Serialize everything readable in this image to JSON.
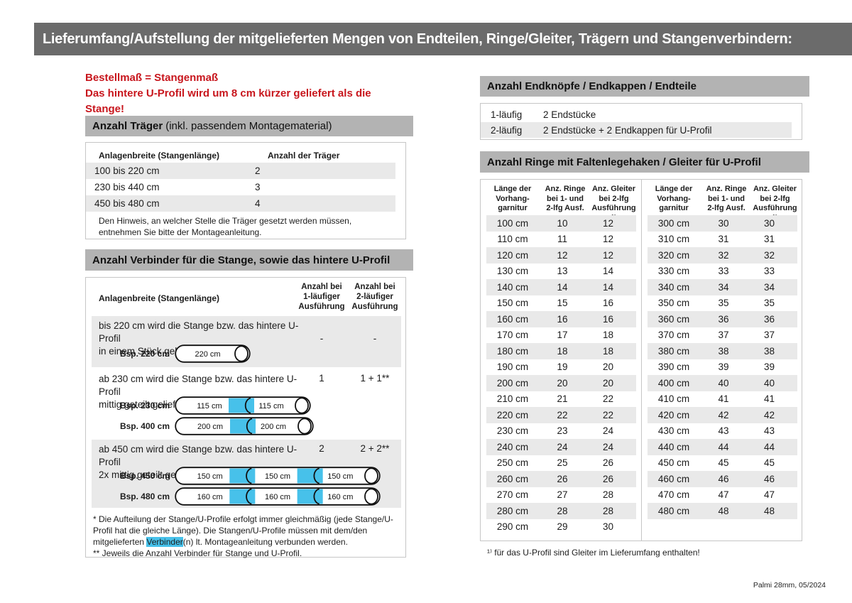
{
  "colors": {
    "header_bar": "#6b6b6b",
    "section_bar": "#b3b3b3",
    "row_shade": "#e9e9e9",
    "red": "#c8161d",
    "cyan": "#47c1ea"
  },
  "page": {
    "header_title": "Lieferumfang/Aufstellung der mitgelieferten Mengen von Endteilen, Ringe/Gleiter, Trägern und Stangenverbindern:",
    "footer": "Palmi 28mm, 05/2024"
  },
  "notice": {
    "line1": "Bestellmaß = Stangenmaß",
    "line2": "Das hintere U-Profil wird um 8 cm kürzer geliefert als die Stange!"
  },
  "traeger": {
    "title_bold": "Anzahl Träger",
    "title_rest": "(inkl. passendem Montagematerial)",
    "col1": "Anlagenbreite (Stangenlänge)",
    "col2": "Anzahl der Träger",
    "rows": [
      {
        "range": "100 bis 220 cm",
        "count": "2"
      },
      {
        "range": "230 bis 440 cm",
        "count": "3"
      },
      {
        "range": "450 bis 480 cm",
        "count": "4"
      }
    ],
    "note": "Den Hinweis, an welcher Stelle die Träger gesetzt werden müssen, entnehmen Sie bitte der Montageanleitung."
  },
  "verbinder": {
    "title": "Anzahl Verbinder für die Stange, sowie das hintere U-Profil",
    "col1": "Anlagenbreite (Stangenlänge)",
    "col2": "Anzahl bei\n1-läufiger\nAusführung",
    "col3": "Anzahl bei\n2-läufiger\nAusführung",
    "blocks": [
      {
        "text1": "bis 220 cm wird die Stange bzw. das hintere U-Profil",
        "text2": "in einem Stück geliefert",
        "qty1": "-",
        "qty2": "-",
        "examples": [
          {
            "label": "Bsp. 220 cm",
            "segments": [
              "220 cm"
            ]
          }
        ]
      },
      {
        "text1": "ab 230 cm wird die Stange bzw. das hintere U-Profil",
        "text2": "mittig geteilt geliefert*",
        "qty1": "1",
        "qty2": "1 + 1**",
        "examples": [
          {
            "label": "Bsp. 230 cm",
            "segments": [
              "115 cm",
              "115 cm"
            ]
          },
          {
            "label": "Bsp. 400 cm",
            "segments": [
              "200 cm",
              "200 cm"
            ]
          }
        ]
      },
      {
        "text1": "ab 450 cm wird die Stange bzw. das hintere U-Profil",
        "text2": "2x mittig geteilt geliefert*",
        "qty1": "2",
        "qty2": "2 + 2**",
        "examples": [
          {
            "label": "Bsp. 450 cm",
            "segments": [
              "150 cm",
              "150 cm",
              "150 cm"
            ]
          },
          {
            "label": "Bsp. 480 cm",
            "segments": [
              "160 cm",
              "160 cm",
              "160 cm"
            ]
          }
        ]
      }
    ],
    "footnote1_pre": "* Die Aufteilung der Stange/U-Profile erfolgt immer gleichmäßig (jede Stange/U-Profil hat die gleiche Länge). Die Stangen/U-Profile müssen mit dem/den mitgelieferten ",
    "footnote1_highlight": "Verbinder",
    "footnote1_post": "(n) lt. Montageanleitung verbunden werden.",
    "footnote2": "** Jeweils die Anzahl Verbinder für Stange und U-Profil."
  },
  "endteile": {
    "title": "Anzahl Endknöpfe / Endkappen / Endteile",
    "rows": [
      {
        "type": "1-läufig",
        "desc": "2 Endstücke"
      },
      {
        "type": "2-läufig",
        "desc": "2 Endstücke + 2 Endkappen für U-Profil"
      }
    ]
  },
  "ringe": {
    "title": "Anzahl Ringe mit Faltenlegehaken / Gleiter für U-Profil",
    "col1": "Länge der\nVorhang-\ngarnitur",
    "col2": "Anz. Ringe\nbei 1- und\n2-lfg Ausf.",
    "col3": "Anz. Gleiter\nbei 2-lfg\nAusführung ¹⁾",
    "left_rows": [
      {
        "len": "100 cm",
        "ringe": "10",
        "gleiter": "12"
      },
      {
        "len": "110 cm",
        "ringe": "11",
        "gleiter": "12"
      },
      {
        "len": "120 cm",
        "ringe": "12",
        "gleiter": "12"
      },
      {
        "len": "130 cm",
        "ringe": "13",
        "gleiter": "14"
      },
      {
        "len": "140 cm",
        "ringe": "14",
        "gleiter": "14"
      },
      {
        "len": "150 cm",
        "ringe": "15",
        "gleiter": "16"
      },
      {
        "len": "160 cm",
        "ringe": "16",
        "gleiter": "16"
      },
      {
        "len": "170 cm",
        "ringe": "17",
        "gleiter": "18"
      },
      {
        "len": "180 cm",
        "ringe": "18",
        "gleiter": "18"
      },
      {
        "len": "190 cm",
        "ringe": "19",
        "gleiter": "20"
      },
      {
        "len": "200 cm",
        "ringe": "20",
        "gleiter": "20"
      },
      {
        "len": "210 cm",
        "ringe": "21",
        "gleiter": "22"
      },
      {
        "len": "220 cm",
        "ringe": "22",
        "gleiter": "22"
      },
      {
        "len": "230 cm",
        "ringe": "23",
        "gleiter": "24"
      },
      {
        "len": "240 cm",
        "ringe": "24",
        "gleiter": "24"
      },
      {
        "len": "250 cm",
        "ringe": "25",
        "gleiter": "26"
      },
      {
        "len": "260 cm",
        "ringe": "26",
        "gleiter": "26"
      },
      {
        "len": "270 cm",
        "ringe": "27",
        "gleiter": "28"
      },
      {
        "len": "280 cm",
        "ringe": "28",
        "gleiter": "28"
      },
      {
        "len": "290 cm",
        "ringe": "29",
        "gleiter": "30"
      }
    ],
    "right_rows": [
      {
        "len": "300 cm",
        "ringe": "30",
        "gleiter": "30"
      },
      {
        "len": "310 cm",
        "ringe": "31",
        "gleiter": "31"
      },
      {
        "len": "320 cm",
        "ringe": "32",
        "gleiter": "32"
      },
      {
        "len": "330 cm",
        "ringe": "33",
        "gleiter": "33"
      },
      {
        "len": "340 cm",
        "ringe": "34",
        "gleiter": "34"
      },
      {
        "len": "350 cm",
        "ringe": "35",
        "gleiter": "35"
      },
      {
        "len": "360 cm",
        "ringe": "36",
        "gleiter": "36"
      },
      {
        "len": "370 cm",
        "ringe": "37",
        "gleiter": "37"
      },
      {
        "len": "380 cm",
        "ringe": "38",
        "gleiter": "38"
      },
      {
        "len": "390 cm",
        "ringe": "39",
        "gleiter": "39"
      },
      {
        "len": "400 cm",
        "ringe": "40",
        "gleiter": "40"
      },
      {
        "len": "410 cm",
        "ringe": "41",
        "gleiter": "41"
      },
      {
        "len": "420 cm",
        "ringe": "42",
        "gleiter": "42"
      },
      {
        "len": "430 cm",
        "ringe": "43",
        "gleiter": "43"
      },
      {
        "len": "440 cm",
        "ringe": "44",
        "gleiter": "44"
      },
      {
        "len": "450 cm",
        "ringe": "45",
        "gleiter": "45"
      },
      {
        "len": "460 cm",
        "ringe": "46",
        "gleiter": "46"
      },
      {
        "len": "470 cm",
        "ringe": "47",
        "gleiter": "47"
      },
      {
        "len": "480 cm",
        "ringe": "48",
        "gleiter": "48"
      }
    ],
    "footnote": "¹⁾ für das U-Profil sind Gleiter im Lieferumfang enthalten!"
  }
}
